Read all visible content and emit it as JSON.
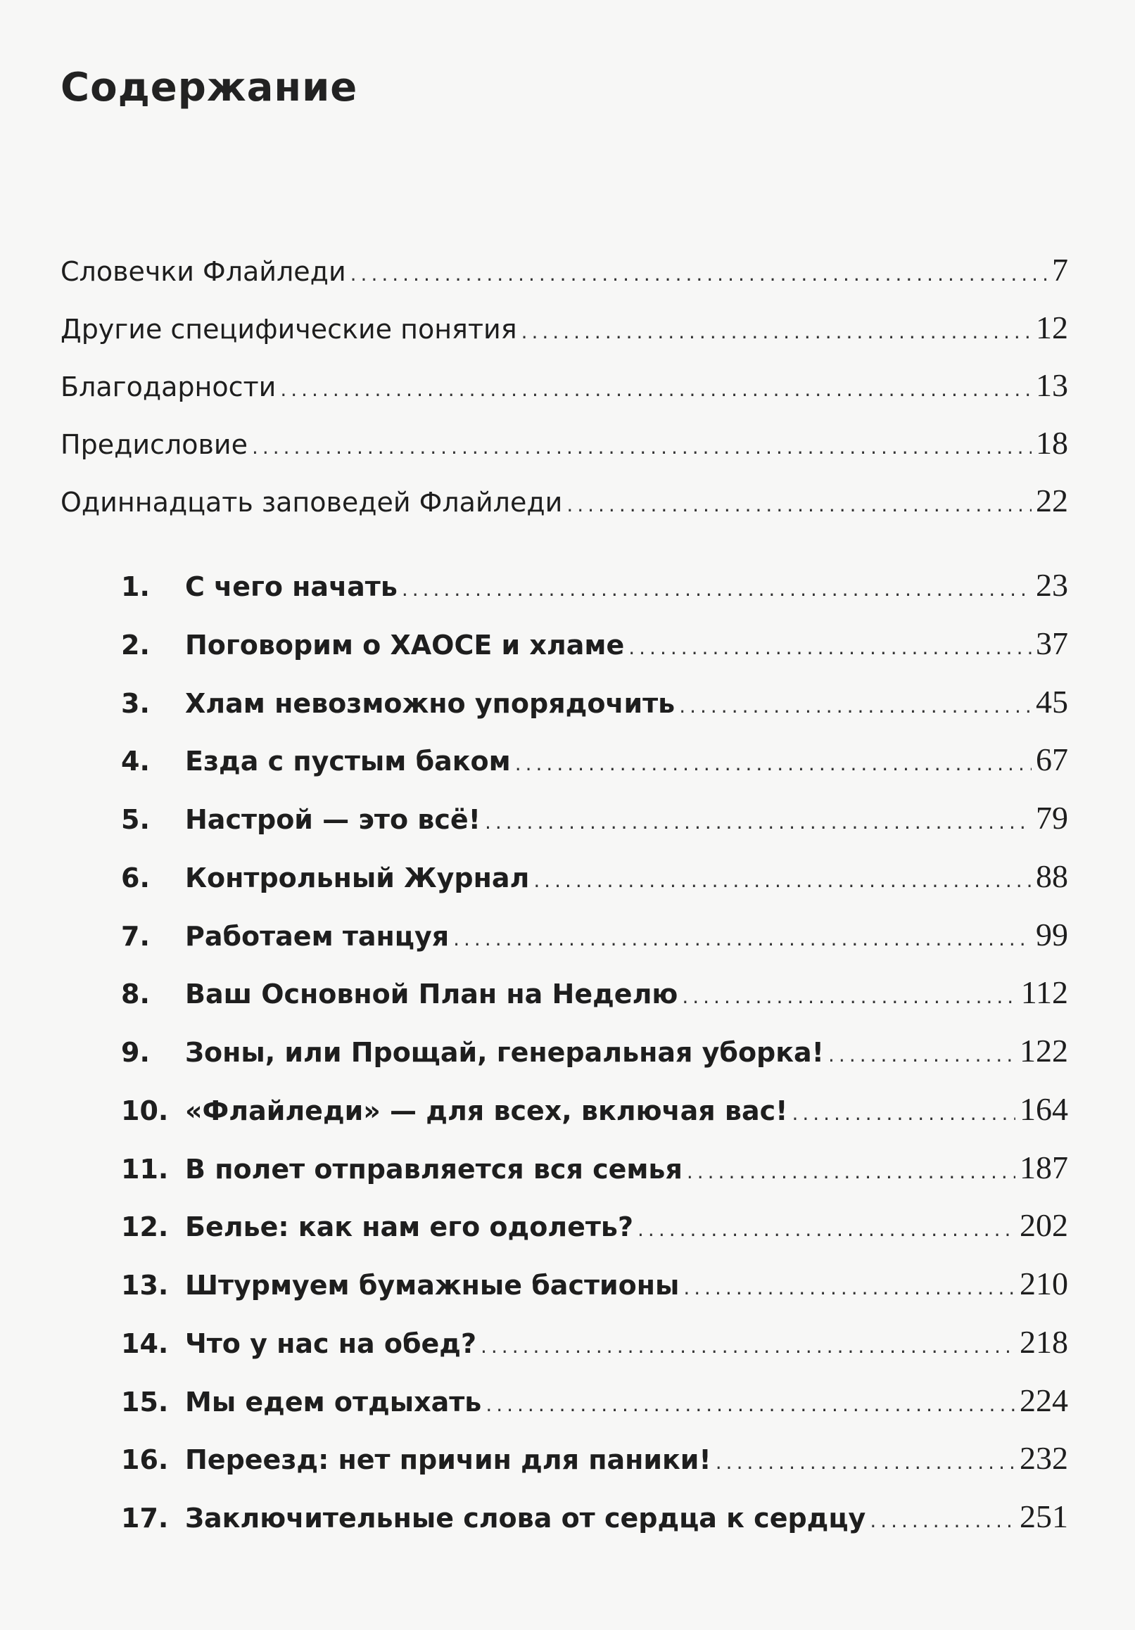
{
  "title": "Содержание",
  "front_matter": [
    {
      "label": "Словечки Флайледи",
      "page": "7"
    },
    {
      "label": "Другие специфические понятия",
      "page": "12"
    },
    {
      "label": "Благодарности",
      "page": "13"
    },
    {
      "label": "Предисловие",
      "page": "18"
    },
    {
      "label": "Одиннадцать заповедей Флайледи",
      "page": "22"
    }
  ],
  "chapters": [
    {
      "number": "1.",
      "label": "С чего начать",
      "page": "23"
    },
    {
      "number": "2.",
      "label": "Поговорим о ХАОСЕ и хламе",
      "page": "37"
    },
    {
      "number": "3.",
      "label": "Хлам невозможно упорядочить",
      "page": "45"
    },
    {
      "number": "4.",
      "label": "Езда с пустым баком",
      "page": "67"
    },
    {
      "number": "5.",
      "label": "Настрой — это всё!",
      "page": "79"
    },
    {
      "number": "6.",
      "label": "Контрольный Журнал",
      "page": "88"
    },
    {
      "number": "7.",
      "label": "Работаем танцуя",
      "page": "99"
    },
    {
      "number": "8.",
      "label": "Ваш Основной План на Неделю",
      "page": "112"
    },
    {
      "number": "9.",
      "label": "Зоны, или Прощай, генеральная уборка!",
      "page": "122"
    },
    {
      "number": "10.",
      "label": "«Флайледи» — для всех, включая вас!",
      "page": "164"
    },
    {
      "number": "11.",
      "label": "В полет отправляется вся семья",
      "page": "187"
    },
    {
      "number": "12.",
      "label": "Белье: как нам его одолеть?",
      "page": "202"
    },
    {
      "number": "13.",
      "label": "Штурмуем бумажные бастионы",
      "page": "210"
    },
    {
      "number": "14.",
      "label": "Что у нас на обед?",
      "page": "218"
    },
    {
      "number": "15.",
      "label": "Мы едем отдыхать",
      "page": "224"
    },
    {
      "number": "16.",
      "label": "Переезд: нет причин для паники!",
      "page": "232"
    },
    {
      "number": "17.",
      "label": "Заключительные слова от сердца к сердцу",
      "page": "251"
    }
  ]
}
